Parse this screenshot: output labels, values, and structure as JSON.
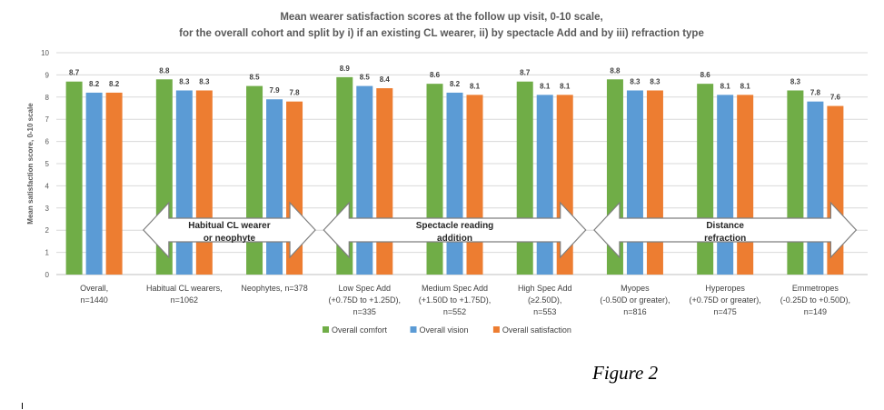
{
  "chart_data": {
    "type": "bar",
    "title": [
      "Mean wearer satisfaction scores at the follow up visit, 0-10 scale,",
      "for the overall cohort and split by i) if an existing CL wearer, ii) by spectacle Add and by iii) refraction type"
    ],
    "ylabel": "Mean satisfaction score, 0-10 scale",
    "xlabel": "",
    "ylim": [
      0,
      10
    ],
    "yticks": [
      0,
      1,
      2,
      3,
      4,
      5,
      6,
      7,
      8,
      9,
      10
    ],
    "grid": true,
    "legend": "bottom",
    "categories": [
      [
        "Overall,",
        "n=1440"
      ],
      [
        "Habitual CL wearers,",
        "n=1062"
      ],
      [
        "Neophytes, n=378"
      ],
      [
        "Low Spec Add",
        "(+0.75D to +1.25D),",
        "n=335"
      ],
      [
        "Medium Spec Add",
        "(+1.50D to +1.75D),",
        "n=552"
      ],
      [
        "High Spec Add",
        "(≥2.50D),",
        "n=553"
      ],
      [
        "Myopes",
        "(-0.50D or greater),",
        "n=816"
      ],
      [
        "Hyperopes",
        "(+0.75D or greater),",
        "n=475"
      ],
      [
        "Emmetropes",
        "(-0.25D to +0.50D),",
        "n=149"
      ]
    ],
    "series": [
      {
        "name": "Overall comfort",
        "color": "#70AD47",
        "values": [
          8.7,
          8.8,
          8.5,
          8.9,
          8.6,
          8.7,
          8.8,
          8.6,
          8.3
        ]
      },
      {
        "name": "Overall vision",
        "color": "#5B9BD5",
        "values": [
          8.2,
          8.3,
          7.9,
          8.5,
          8.2,
          8.1,
          8.3,
          8.1,
          7.8
        ]
      },
      {
        "name": "Overall satisfaction",
        "color": "#ED7D31",
        "values": [
          8.2,
          8.3,
          7.8,
          8.4,
          8.1,
          8.1,
          8.3,
          8.1,
          7.6
        ]
      }
    ],
    "annotations": [
      {
        "text": [
          "Habitual CL wearer",
          "or neophyte"
        ],
        "groups": [
          1,
          2
        ]
      },
      {
        "text": [
          "Spectacle reading",
          "addition"
        ],
        "groups": [
          3,
          5
        ]
      },
      {
        "text": [
          "Distance",
          "refraction"
        ],
        "groups": [
          6,
          8
        ]
      }
    ]
  },
  "caption": "Figure 2"
}
